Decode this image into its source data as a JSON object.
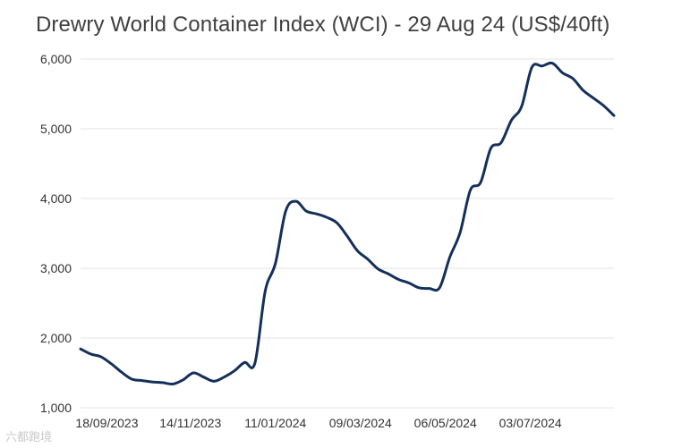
{
  "chart_data": {
    "type": "line",
    "title": "Drewry World Container Index (WCI) - 29 Aug 24 (US$/40ft)",
    "xlabel": "",
    "ylabel": "",
    "ylim": [
      1000,
      6000
    ],
    "yticks": [
      "1,000",
      "2,000",
      "3,000",
      "4,000",
      "5,000",
      "6,000"
    ],
    "ytick_values": [
      1000,
      2000,
      3000,
      4000,
      5000,
      6000
    ],
    "xticks": [
      "18/09/2023",
      "14/11/2023",
      "11/01/2024",
      "09/03/2024",
      "06/05/2024",
      "03/07/2024"
    ],
    "xtick_values": [
      "2023-09-18",
      "2023-11-14",
      "2024-01-11",
      "2024-03-09",
      "2024-05-06",
      "2024-07-03"
    ],
    "x_range": [
      "2023-08-31",
      "2024-08-29"
    ],
    "grid": true,
    "legend": "none",
    "series": [
      {
        "color": "#14305a",
        "x": [
          "2023-08-31",
          "2023-09-07",
          "2023-09-14",
          "2023-09-21",
          "2023-09-28",
          "2023-10-05",
          "2023-10-12",
          "2023-10-19",
          "2023-10-26",
          "2023-11-02",
          "2023-11-09",
          "2023-11-16",
          "2023-11-23",
          "2023-11-30",
          "2023-12-07",
          "2023-12-14",
          "2023-12-21",
          "2023-12-28",
          "2024-01-04",
          "2024-01-11",
          "2024-01-18",
          "2024-01-25",
          "2024-02-01",
          "2024-02-08",
          "2024-02-15",
          "2024-02-22",
          "2024-02-29",
          "2024-03-07",
          "2024-03-14",
          "2024-03-21",
          "2024-03-28",
          "2024-04-04",
          "2024-04-11",
          "2024-04-18",
          "2024-04-25",
          "2024-05-02",
          "2024-05-09",
          "2024-05-16",
          "2024-05-23",
          "2024-05-30",
          "2024-06-06",
          "2024-06-13",
          "2024-06-20",
          "2024-06-27",
          "2024-07-04",
          "2024-07-11",
          "2024-07-18",
          "2024-07-25",
          "2024-08-01",
          "2024-08-08",
          "2024-08-15",
          "2024-08-22",
          "2024-08-29"
        ],
        "values": [
          1843,
          1770,
          1730,
          1630,
          1510,
          1410,
          1390,
          1370,
          1360,
          1340,
          1400,
          1500,
          1440,
          1380,
          1440,
          1530,
          1650,
          1640,
          2670,
          3070,
          3820,
          3960,
          3820,
          3780,
          3730,
          3650,
          3460,
          3250,
          3130,
          2990,
          2920,
          2840,
          2790,
          2720,
          2710,
          2720,
          3160,
          3510,
          4120,
          4230,
          4720,
          4800,
          5120,
          5320,
          5880,
          5900,
          5940,
          5800,
          5720,
          5550,
          5440,
          5330,
          5190
        ]
      }
    ]
  },
  "watermark": {
    "text": "六都跑境"
  }
}
